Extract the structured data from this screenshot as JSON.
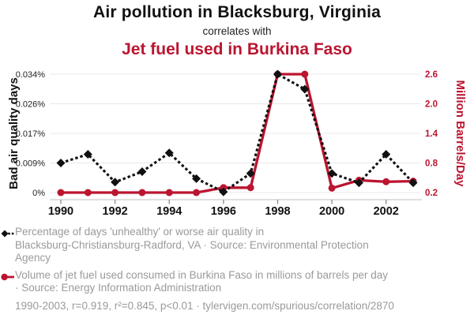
{
  "header": {
    "title": "Air pollution in Blacksburg, Virginia",
    "connector": "correlates with",
    "subtitle": "Jet fuel used in Burkina Faso"
  },
  "colors": {
    "accent_red": "#bb1530",
    "series_black": "#111111",
    "grid": "#e8e8e8",
    "axis_line": "#cccccc",
    "tick_mark": "#8a8a8a",
    "x_label": "#111111",
    "legend_text": "#9a9a9a"
  },
  "chart_data": {
    "type": "line",
    "x": [
      1990,
      1991,
      1992,
      1993,
      1994,
      1995,
      1996,
      1997,
      1998,
      1999,
      2000,
      2001,
      2002,
      2003
    ],
    "x_axis": {
      "tick_years": [
        1990,
        1992,
        1994,
        1996,
        1998,
        2000,
        2002
      ]
    },
    "left_axis": {
      "title": "Bad air quality days",
      "tick_labels": [
        "0%",
        "0.009%",
        "0.017%",
        "0.026%",
        "0.034%"
      ],
      "range": [
        0,
        0.034
      ],
      "unit": "%"
    },
    "right_axis": {
      "title": "Million Barrels/Day",
      "tick_labels": [
        "0.2",
        "0.8",
        "1.4",
        "2.0",
        "2.6"
      ],
      "range": [
        0.2,
        2.6
      ]
    },
    "series": [
      {
        "id": "air-quality",
        "name": "Percentage of days 'unhealthy' or worse air quality in Blacksburg-Christiansburg-Radford, VA",
        "axis": "left",
        "style": "dashed-diamond",
        "color": "#111111",
        "values": [
          0.0085,
          0.011,
          0.003,
          0.006,
          0.0114,
          0.004,
          0.0002,
          0.0055,
          0.034,
          0.0297,
          0.0055,
          0.0028,
          0.011,
          0.0028
        ]
      },
      {
        "id": "jet-fuel",
        "name": "Volume of jet fuel used consumed in Burkina Faso (millions of barrels per day)",
        "axis": "right",
        "style": "solid-circle",
        "color": "#bb1530",
        "values": [
          0.2,
          0.2,
          0.2,
          0.2,
          0.2,
          0.2,
          0.3,
          0.3,
          2.6,
          2.6,
          0.29,
          0.45,
          0.42,
          0.43
        ]
      }
    ],
    "legend_position": "bottom",
    "grid": true
  },
  "legend": {
    "items": [
      {
        "series": "air-quality",
        "lines": [
          "Percentage of days 'unhealthy' or worse air quality in",
          "Blacksburg-Christiansburg-Radford, VA · Source: Environmental Protection",
          "Agency"
        ]
      },
      {
        "series": "jet-fuel",
        "lines": [
          "Volume of jet fuel used consumed in Burkina Faso in millions of barrels per day",
          "· Source: Energy Information Administration"
        ]
      }
    ]
  },
  "footer": {
    "text": "1990-2003, r=0.919, r²=0.845, p<0.01 · tylervigen.com/spurious/correlation/2870"
  }
}
